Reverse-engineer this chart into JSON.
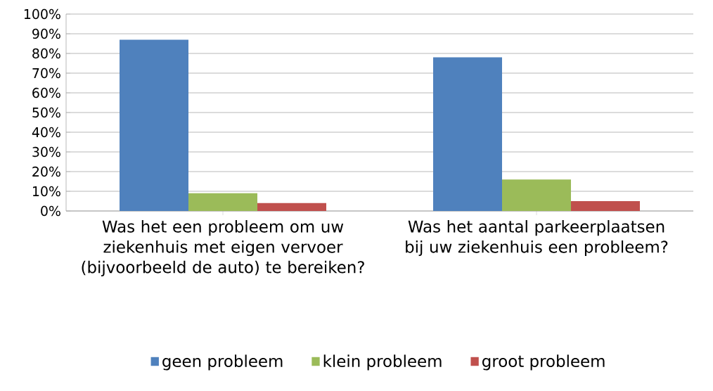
{
  "chart_data": {
    "type": "bar",
    "categories": [
      "Was het een probleem om uw ziekenhuis met eigen vervoer (bijvoorbeeld de auto) te bereiken?",
      "Was het aantal parkeerplaatsen bij uw ziekenhuis een probleem?"
    ],
    "series": [
      {
        "name": "geen probleem",
        "color": "#4f81bd",
        "values": [
          87,
          78
        ]
      },
      {
        "name": "klein probleem",
        "color": "#9bbb59",
        "values": [
          9,
          16
        ]
      },
      {
        "name": "groot probleem",
        "color": "#c0504d",
        "values": [
          4,
          5
        ]
      }
    ],
    "ylim": [
      0,
      100
    ],
    "yticks": [
      {
        "value": 0,
        "label": "0%"
      },
      {
        "value": 10,
        "label": "10%"
      },
      {
        "value": 20,
        "label": "20%"
      },
      {
        "value": 30,
        "label": "30%"
      },
      {
        "value": 40,
        "label": "40%"
      },
      {
        "value": 50,
        "label": "50%"
      },
      {
        "value": 60,
        "label": "60%"
      },
      {
        "value": 70,
        "label": "70%"
      },
      {
        "value": 80,
        "label": "80%"
      },
      {
        "value": 90,
        "label": "90%"
      },
      {
        "value": 100,
        "label": "100%"
      }
    ],
    "grid": "y",
    "legend": "bottom"
  }
}
